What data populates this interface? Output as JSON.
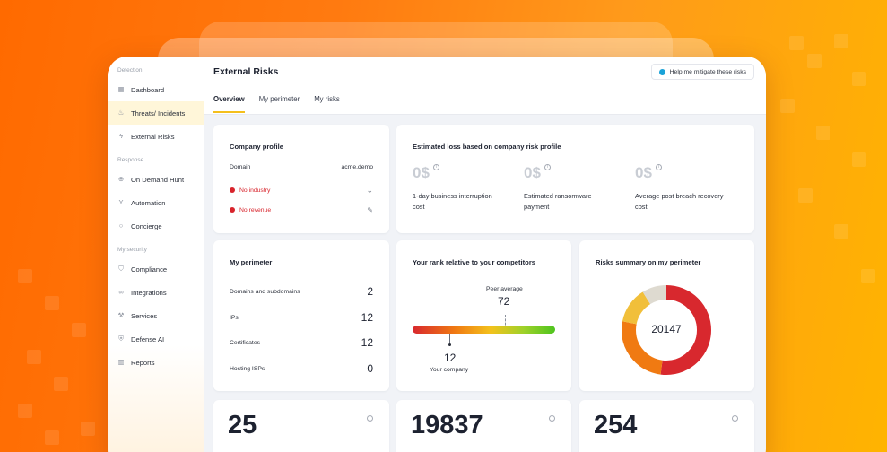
{
  "sidebar": {
    "sections": [
      {
        "label": "Detection",
        "items": [
          {
            "label": "Dashboard",
            "icon": "grid-icon"
          },
          {
            "label": "Threats/ Incidents",
            "icon": "fire-icon",
            "active": true
          },
          {
            "label": "External Risks",
            "icon": "bolt-icon"
          }
        ]
      },
      {
        "label": "Response",
        "items": [
          {
            "label": "On Demand Hunt",
            "icon": "crosshair-icon"
          },
          {
            "label": "Automation",
            "icon": "branch-icon"
          },
          {
            "label": "Concierge",
            "icon": "chat-icon"
          }
        ]
      },
      {
        "label": "My security",
        "items": [
          {
            "label": "Compliance",
            "icon": "shield-check-icon"
          },
          {
            "label": "Integrations",
            "icon": "link-icon"
          },
          {
            "label": "Services",
            "icon": "wrench-icon"
          },
          {
            "label": "Defense AI",
            "icon": "shield-icon"
          },
          {
            "label": "Reports",
            "icon": "bar-chart-icon"
          }
        ]
      }
    ]
  },
  "header": {
    "title": "External Risks",
    "help_label": "Help me mitigate these risks",
    "tabs": [
      {
        "label": "Overview",
        "active": true
      },
      {
        "label": "My perimeter"
      },
      {
        "label": "My risks"
      }
    ]
  },
  "company_profile": {
    "title": "Company profile",
    "domain_label": "Domain",
    "domain_value": "acme.demo",
    "industry": "No industry",
    "revenue": "No revenue"
  },
  "loss": {
    "title": "Estimated loss based on company risk profile",
    "items": [
      {
        "value": "0$",
        "label": "1-day business interruption cost"
      },
      {
        "value": "0$",
        "label": "Estimated ransomware payment"
      },
      {
        "value": "0$",
        "label": "Average post breach recovery cost"
      }
    ]
  },
  "perimeter": {
    "title": "My perimeter",
    "rows": [
      {
        "label": "Domains and subdomains",
        "value": "2"
      },
      {
        "label": "IPs",
        "value": "12"
      },
      {
        "label": "Certificates",
        "value": "12"
      },
      {
        "label": "Hosting ISPs",
        "value": "0"
      }
    ]
  },
  "rank": {
    "title": "Your rank relative to your competitors",
    "peer_label": "Peer average",
    "peer_value": "72",
    "company_value": "12",
    "company_label": "Your company",
    "company_position": 0.26,
    "peer_position": 0.65
  },
  "risks_summary": {
    "title": "Risks summary on my perimeter",
    "total": "20147",
    "segments": [
      {
        "share": 0.52,
        "color": "#d8282e"
      },
      {
        "share": 0.26,
        "color": "#f07a12"
      },
      {
        "share": 0.13,
        "color": "#f1bf3a"
      },
      {
        "share": 0.09,
        "color": "#dedad0"
      }
    ]
  },
  "stats": [
    {
      "value": "25"
    },
    {
      "value": "19837"
    },
    {
      "value": "254"
    }
  ],
  "colors": {
    "accent": "#f4bf1c",
    "danger": "#d8242c",
    "info_blue": "#1aa2d8"
  }
}
